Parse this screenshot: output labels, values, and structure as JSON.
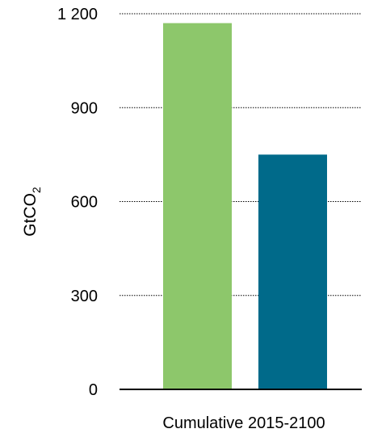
{
  "chart_data": {
    "type": "bar",
    "categories": [
      "Cumulative 2015-2100"
    ],
    "series": [
      {
        "values": [
          1170
        ],
        "color": "#8dc76b"
      },
      {
        "values": [
          750
        ],
        "color": "#006a8a"
      }
    ],
    "ylabel": "GtCO",
    "ylabel_subscript": "2",
    "ylim": [
      0,
      1200
    ],
    "yticks": [
      0,
      300,
      600,
      900,
      1200
    ],
    "ytick_labels": [
      "0",
      "300",
      "600",
      "900",
      "1 200"
    ],
    "grid": true,
    "grid_style": "dotted"
  }
}
